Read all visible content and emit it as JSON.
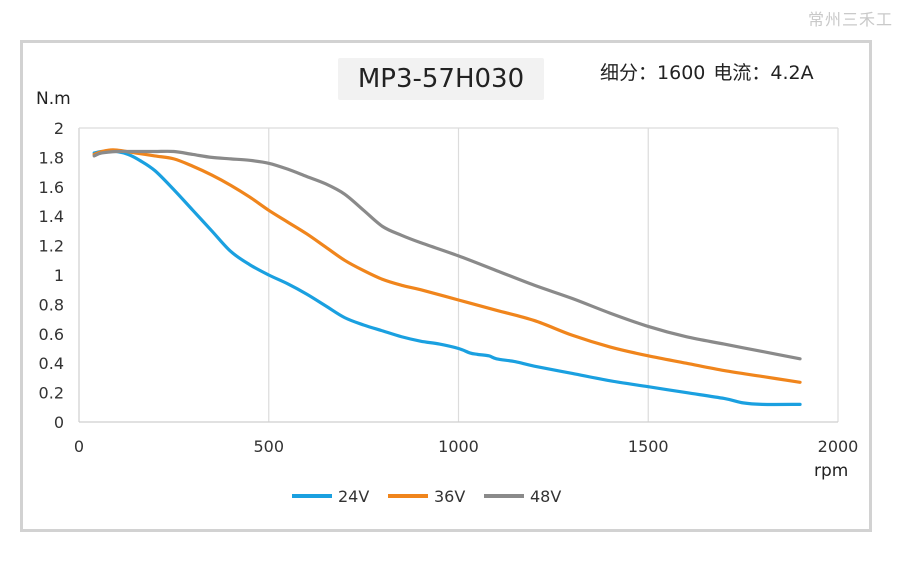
{
  "watermark": "常州三禾工",
  "title": "MP3-57H030",
  "spec": {
    "subdivision_label": "细分：",
    "subdivision_value": "1600",
    "current_label": "电流：",
    "current_value": "4.2A"
  },
  "chart_data": {
    "type": "line",
    "title": "MP3-57H030",
    "xlabel": "rpm",
    "ylabel": "N.m",
    "xlim": [
      0,
      2000
    ],
    "ylim": [
      0,
      2
    ],
    "xticks": [
      0,
      500,
      1000,
      1500,
      2000
    ],
    "yticks": [
      0,
      0.2,
      0.4,
      0.6,
      0.8,
      1,
      1.2,
      1.4,
      1.6,
      1.8,
      2
    ],
    "grid": "vertical",
    "legend_position": "bottom",
    "series": [
      {
        "name": "24V",
        "color": "#1aa0e0",
        "x": [
          40,
          60,
          80,
          100,
          130,
          160,
          200,
          250,
          300,
          350,
          400,
          450,
          500,
          550,
          600,
          650,
          700,
          750,
          800,
          850,
          900,
          950,
          1000,
          1030,
          1050,
          1080,
          1100,
          1150,
          1200,
          1300,
          1400,
          1500,
          1600,
          1700,
          1750,
          1800,
          1900
        ],
        "y": [
          1.83,
          1.84,
          1.84,
          1.84,
          1.82,
          1.78,
          1.71,
          1.58,
          1.44,
          1.3,
          1.16,
          1.07,
          1.0,
          0.94,
          0.87,
          0.79,
          0.71,
          0.66,
          0.62,
          0.58,
          0.55,
          0.53,
          0.5,
          0.47,
          0.46,
          0.45,
          0.43,
          0.41,
          0.38,
          0.33,
          0.28,
          0.24,
          0.2,
          0.16,
          0.13,
          0.12,
          0.12
        ]
      },
      {
        "name": "36V",
        "color": "#f0851c",
        "x": [
          40,
          60,
          80,
          100,
          150,
          200,
          250,
          300,
          350,
          400,
          450,
          500,
          550,
          600,
          650,
          700,
          750,
          800,
          850,
          900,
          1000,
          1100,
          1200,
          1300,
          1400,
          1500,
          1600,
          1700,
          1800,
          1900
        ],
        "y": [
          1.82,
          1.84,
          1.85,
          1.85,
          1.83,
          1.81,
          1.79,
          1.74,
          1.68,
          1.61,
          1.53,
          1.44,
          1.36,
          1.28,
          1.19,
          1.1,
          1.03,
          0.97,
          0.93,
          0.9,
          0.83,
          0.76,
          0.69,
          0.59,
          0.51,
          0.45,
          0.4,
          0.35,
          0.31,
          0.27
        ]
      },
      {
        "name": "48V",
        "color": "#8a8a8a",
        "x": [
          40,
          60,
          100,
          150,
          200,
          250,
          300,
          350,
          400,
          450,
          500,
          550,
          600,
          650,
          700,
          750,
          800,
          850,
          900,
          1000,
          1100,
          1200,
          1300,
          1400,
          1500,
          1600,
          1700,
          1800,
          1900
        ],
        "y": [
          1.81,
          1.83,
          1.84,
          1.84,
          1.84,
          1.84,
          1.82,
          1.8,
          1.79,
          1.78,
          1.76,
          1.72,
          1.67,
          1.62,
          1.55,
          1.44,
          1.33,
          1.27,
          1.22,
          1.13,
          1.03,
          0.93,
          0.84,
          0.74,
          0.65,
          0.58,
          0.53,
          0.48,
          0.43
        ]
      }
    ]
  }
}
